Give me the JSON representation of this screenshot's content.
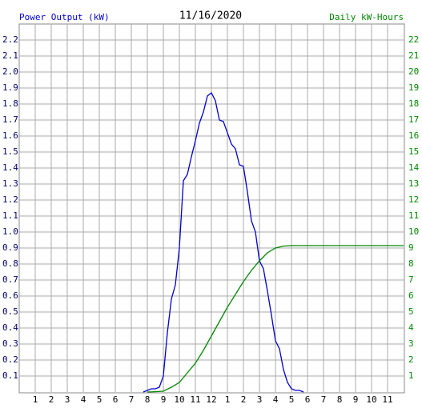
{
  "chart_data": {
    "type": "line",
    "title": "11/16/2020",
    "xlim": [
      0,
      24
    ],
    "xticks": [
      1,
      2,
      3,
      4,
      5,
      6,
      7,
      8,
      9,
      10,
      11,
      12,
      {
        "value": 13,
        "label": "1"
      },
      {
        "value": 14,
        "label": "2"
      },
      {
        "value": 15,
        "label": "3"
      },
      {
        "value": 16,
        "label": "4"
      },
      {
        "value": 17,
        "label": "5"
      },
      {
        "value": 18,
        "label": "6"
      },
      {
        "value": 19,
        "label": "7"
      },
      {
        "value": 20,
        "label": "8"
      },
      {
        "value": 21,
        "label": "9"
      },
      {
        "value": 22,
        "label": "10"
      },
      {
        "value": 23,
        "label": "11"
      }
    ],
    "ylim": [
      0,
      2.3
    ],
    "yticks": [
      0.1,
      0.2,
      0.3,
      0.4,
      0.5,
      0.6,
      0.7,
      0.8,
      0.9,
      {
        "value": 1,
        "label": "1.0"
      },
      1.1,
      1.2,
      1.3,
      1.4,
      1.5,
      1.6,
      1.7,
      1.8,
      1.9,
      {
        "value": 2,
        "label": "2.0"
      },
      2.1,
      2.2
    ],
    "y2lim": [
      0,
      23
    ],
    "y2ticks": [
      1,
      2,
      3,
      4,
      5,
      6,
      7,
      8,
      9,
      10,
      11,
      12,
      13,
      14,
      15,
      16,
      17,
      18,
      19,
      20,
      21,
      22
    ],
    "grid": true,
    "series": [
      {
        "name": "Power Output (kW)",
        "color": "#0000cc",
        "x": [
          7.75,
          8,
          8.25,
          8.5,
          8.75,
          9,
          9.25,
          9.5,
          9.75,
          10,
          10.25,
          10.5,
          10.75,
          11,
          11.25,
          11.5,
          11.75,
          12,
          12.25,
          12.5,
          12.75,
          13,
          13.25,
          13.5,
          13.75,
          14,
          14.25,
          14.5,
          14.75,
          15,
          15.25,
          15.5,
          15.75,
          16,
          16.25,
          16.5,
          16.75,
          17,
          17.25,
          17.5,
          17.75
        ],
        "values": [
          0,
          0.01,
          0.02,
          0.02,
          0.03,
          0.1,
          0.37,
          0.58,
          0.67,
          0.9,
          1.32,
          1.36,
          1.47,
          1.57,
          1.68,
          1.75,
          1.85,
          1.87,
          1.82,
          1.7,
          1.69,
          1.62,
          1.55,
          1.52,
          1.42,
          1.41,
          1.25,
          1.07,
          1.0,
          0.82,
          0.77,
          0.63,
          0.48,
          0.32,
          0.27,
          0.14,
          0.06,
          0.02,
          0.01,
          0.01,
          0
        ]
      },
      {
        "name": "Daily kW-Hours",
        "color": "#008800",
        "axis": "y2",
        "x": [
          8,
          8.5,
          9,
          9.5,
          10,
          10.5,
          11,
          11.5,
          12,
          12.5,
          13,
          13.5,
          14,
          14.5,
          15,
          15.5,
          16,
          16.5,
          17,
          24
        ],
        "values": [
          0,
          0.02,
          0.05,
          0.3,
          0.6,
          1.2,
          1.8,
          2.6,
          3.5,
          4.4,
          5.3,
          6.1,
          6.9,
          7.6,
          8.2,
          8.7,
          9.0,
          9.12,
          9.15,
          9.15
        ]
      }
    ]
  }
}
